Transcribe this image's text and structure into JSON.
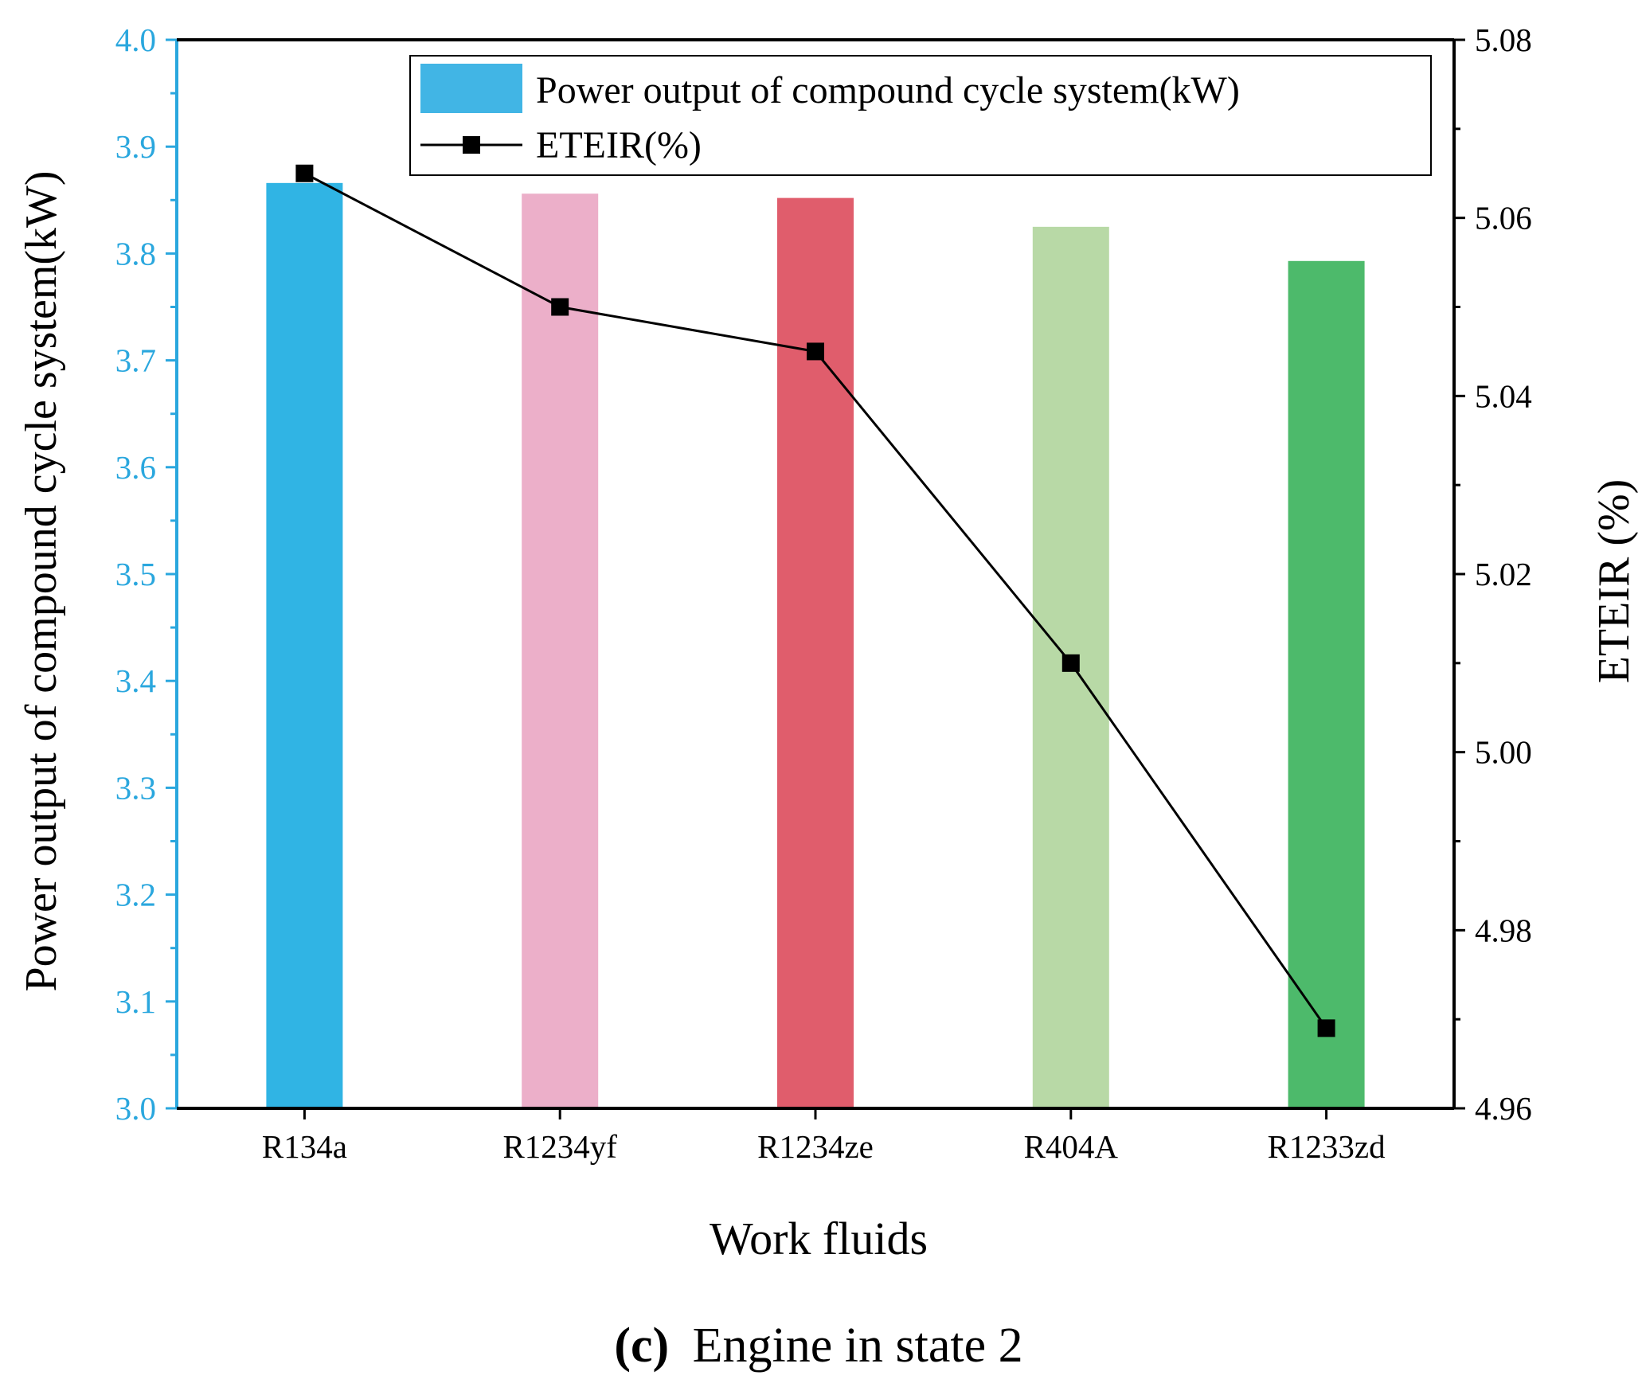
{
  "chart_data": {
    "type": "bar",
    "categories": [
      "R134a",
      "R1234yf",
      "R1234ze",
      "R404A",
      "R1233zd"
    ],
    "series": [
      {
        "name": "Power output of compound cycle system(kW)",
        "kind": "bar",
        "axis": "left",
        "values": [
          3.866,
          3.856,
          3.852,
          3.825,
          3.793
        ],
        "colors": [
          "#30b4e4",
          "#ecafc9",
          "#e05d6c",
          "#b8d9a6",
          "#4dba6b"
        ]
      },
      {
        "name": "ETEIR(%)",
        "kind": "line",
        "axis": "right",
        "marker": "square",
        "values": [
          5.065,
          5.05,
          5.045,
          5.01,
          4.969
        ]
      }
    ],
    "xlabel": "Work fluids",
    "ylabel_left": "Power output of compound cycle system(kW)",
    "ylabel_right": "ETEIR (%)",
    "ylim_left": [
      3.0,
      4.0
    ],
    "ylim_right": [
      4.96,
      5.08
    ],
    "yticks_left": [
      "3.0",
      "3.1",
      "3.2",
      "3.3",
      "3.4",
      "3.5",
      "3.6",
      "3.7",
      "3.8",
      "3.9",
      "4.0"
    ],
    "yticks_right": [
      "4.96",
      "4.98",
      "5.00",
      "5.02",
      "5.04",
      "5.06",
      "5.08"
    ],
    "legend": {
      "position": "top-right",
      "entries": [
        "Power output of compound cycle system(kW)",
        "ETEIR(%)"
      ]
    },
    "caption_label": "(c)",
    "caption_text": "Engine in state 2",
    "colors": {
      "left_axis": "#2aa7de",
      "right_axis": "#000000",
      "line": "#000000",
      "legend_bar": "#41b5e5"
    }
  }
}
